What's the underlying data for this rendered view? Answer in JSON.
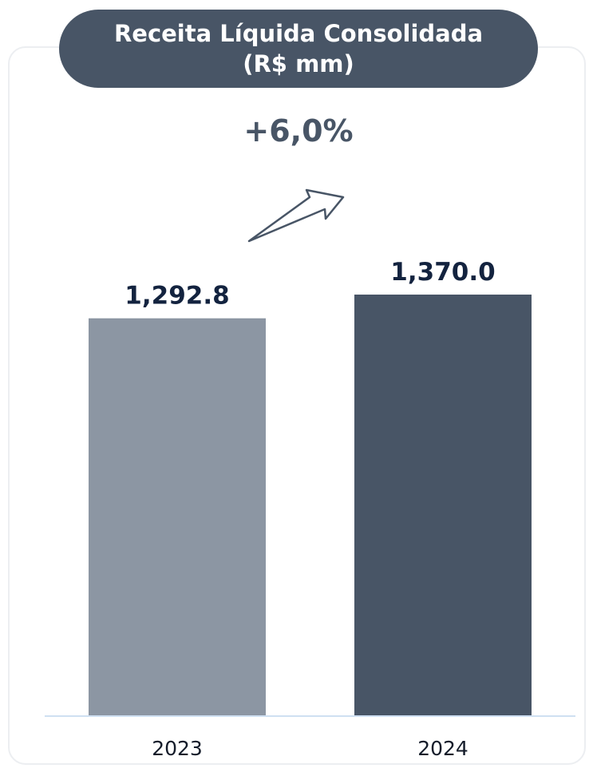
{
  "title": {
    "line1": "Receita Líquida Consolidada",
    "line2": "(R$ mm)"
  },
  "growth_label": "+6,0%",
  "icons": {
    "growth_arrow": "trend-up-arrow-icon"
  },
  "colors": {
    "title_bg": "#485566",
    "bar_2023": "#8c96a3",
    "bar_2024": "#485566",
    "axis_line": "#cfe0f2",
    "value_text": "#13233f"
  },
  "chart_data": {
    "type": "bar",
    "categories": [
      "2023",
      "2024"
    ],
    "values": [
      1292.8,
      1370.0
    ],
    "value_labels": [
      "1,292.8",
      "1,370.0"
    ],
    "bar_colors": [
      "#8c96a3",
      "#485566"
    ],
    "title": "Receita Líquida Consolidada (R$ mm)",
    "xlabel": "",
    "ylabel": "",
    "ylim": [
      0,
      1370.0
    ],
    "grid": false,
    "legend": "none"
  }
}
